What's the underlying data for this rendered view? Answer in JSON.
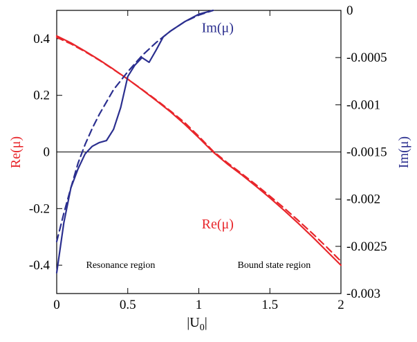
{
  "chart_data": {
    "type": "line",
    "title": "",
    "xlabel": "|U",
    "xlabel_sub": "0",
    "xlabel_end": "|",
    "ylabel_left": "Re(μ)",
    "ylabel_right": "Im(μ)",
    "xlim": [
      0,
      2
    ],
    "ylim_left": [
      -0.5,
      0.5
    ],
    "ylim_right": [
      -0.003,
      0
    ],
    "x_ticks": [
      0,
      0.5,
      1,
      1.5,
      2
    ],
    "x_tick_labels": [
      "0",
      "0.5",
      "1",
      "1.5",
      "2"
    ],
    "y_left_ticks": [
      -0.4,
      -0.2,
      0,
      0.2,
      0.4
    ],
    "y_left_tick_labels": [
      "-0.4",
      "-0.2",
      "0",
      "0.2",
      "0.4"
    ],
    "y_right_ticks": [
      -0.003,
      -0.0025,
      -0.002,
      -0.0015,
      -0.001,
      -0.0005,
      0
    ],
    "y_right_tick_labels": [
      "-0.003",
      "-0.0025",
      "-0.002",
      "-0.0015",
      "-0.001",
      "-0.0005",
      "0"
    ],
    "colors": {
      "re": "#e8262b",
      "im": "#2b2f8f"
    },
    "annotations": [
      {
        "text": "Resonance region",
        "x": 0.45,
        "y": -0.41
      },
      {
        "text": "Bound state region",
        "x": 1.53,
        "y": -0.41
      }
    ],
    "series_labels": [
      {
        "name": "Re(μ)",
        "series": "re",
        "x": 1.02,
        "y": -0.27
      },
      {
        "name": "Im(μ)",
        "series": "im",
        "x": 1.02,
        "y": -0.00023
      }
    ],
    "series": [
      {
        "id": "re-solid",
        "axis": "left",
        "color": "re",
        "style": "solid",
        "x": [
          0,
          0.1,
          0.2,
          0.3,
          0.4,
          0.5,
          0.6,
          0.7,
          0.8,
          0.85,
          0.9,
          1.0,
          1.1,
          1.2,
          1.3,
          1.4,
          1.5,
          1.6,
          1.7,
          1.8,
          1.9,
          2.0
        ],
        "y": [
          0.41,
          0.385,
          0.356,
          0.325,
          0.292,
          0.257,
          0.22,
          0.182,
          0.142,
          0.12,
          0.098,
          0.05,
          0.0,
          -0.042,
          -0.08,
          -0.12,
          -0.162,
          -0.206,
          -0.252,
          -0.3,
          -0.35,
          -0.4
        ]
      },
      {
        "id": "re-dashed",
        "axis": "left",
        "color": "re",
        "style": "dashed",
        "x": [
          0,
          0.1,
          0.2,
          0.3,
          0.4,
          0.5,
          0.6,
          0.7,
          0.8,
          0.9,
          1.0,
          1.1,
          1.2,
          1.3,
          1.4,
          1.5,
          1.6,
          1.7,
          1.8,
          1.9,
          2.0
        ],
        "y": [
          0.405,
          0.382,
          0.354,
          0.324,
          0.291,
          0.257,
          0.221,
          0.184,
          0.145,
          0.104,
          0.055,
          0.003,
          -0.038,
          -0.076,
          -0.115,
          -0.156,
          -0.198,
          -0.242,
          -0.288,
          -0.336,
          -0.386
        ]
      },
      {
        "id": "im-solid",
        "axis": "right",
        "color": "im",
        "style": "solid",
        "x": [
          0,
          0.05,
          0.1,
          0.15,
          0.2,
          0.25,
          0.3,
          0.35,
          0.4,
          0.45,
          0.5,
          0.55,
          0.6,
          0.65,
          0.7,
          0.75,
          0.8,
          0.85,
          0.9,
          1.0,
          1.1
        ],
        "y": [
          -0.00278,
          -0.00225,
          -0.00188,
          -0.00168,
          -0.00152,
          -0.00144,
          -0.0014,
          -0.00138,
          -0.00126,
          -0.00103,
          -0.0007,
          -0.00058,
          -0.0005,
          -0.00055,
          -0.00042,
          -0.00028,
          -0.00022,
          -0.00017,
          -0.00012,
          -4e-05,
          0.0
        ]
      },
      {
        "id": "im-dashed",
        "axis": "right",
        "color": "im",
        "style": "dashed",
        "x": [
          0,
          0.05,
          0.1,
          0.15,
          0.2,
          0.25,
          0.3,
          0.4,
          0.5,
          0.6,
          0.7,
          0.8,
          0.9,
          1.0,
          1.1
        ],
        "y": [
          -0.00245,
          -0.00215,
          -0.00188,
          -0.00162,
          -0.00142,
          -0.00125,
          -0.0011,
          -0.00084,
          -0.00065,
          -0.00048,
          -0.00034,
          -0.00022,
          -0.00012,
          -5e-05,
          0.0
        ]
      }
    ]
  }
}
